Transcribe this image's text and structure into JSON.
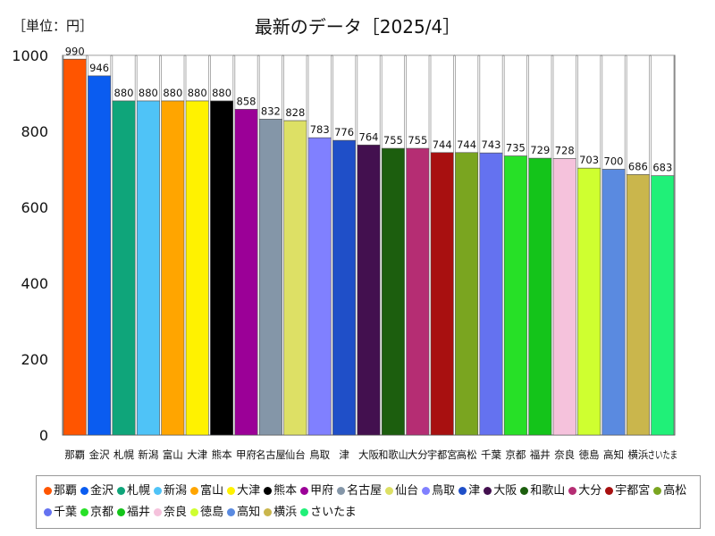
{
  "header": {
    "unit_label": "［単位：円］"
  },
  "chart_data": {
    "type": "bar",
    "title": "最新のデータ［2025/4］",
    "xlabel": "",
    "ylabel": "",
    "ylim": [
      0,
      1000
    ],
    "yticks": [
      0,
      200,
      400,
      600,
      800,
      1000
    ],
    "grid": false,
    "legend_position": "bottom",
    "categories": [
      "那覇",
      "金沢",
      "札幌",
      "新潟",
      "富山",
      "大津",
      "熊本",
      "甲府",
      "名古屋",
      "仙台",
      "鳥取",
      "津",
      "大阪",
      "和歌山",
      "大分",
      "宇都宮",
      "高松",
      "千葉",
      "京都",
      "福井",
      "奈良",
      "徳島",
      "高知",
      "横浜",
      "さいたま"
    ],
    "values": [
      990,
      946,
      880,
      880,
      880,
      880,
      880,
      858,
      832,
      828,
      783,
      776,
      764,
      755,
      755,
      744,
      744,
      743,
      735,
      729,
      728,
      703,
      700,
      686,
      683
    ],
    "colors": [
      "#ff5500",
      "#0a5cf0",
      "#0fa57a",
      "#4fc3f7",
      "#ffa500",
      "#fff200",
      "#000000",
      "#9b0097",
      "#8496a8",
      "#dde065",
      "#8080ff",
      "#1f4fc8",
      "#43104f",
      "#1c5e0e",
      "#b52d73",
      "#a81010",
      "#7aa520",
      "#6472f0",
      "#27e027",
      "#14c41a",
      "#f5c2dc",
      "#cfff30",
      "#5a8ae0",
      "#cab64c",
      "#20f078"
    ]
  }
}
